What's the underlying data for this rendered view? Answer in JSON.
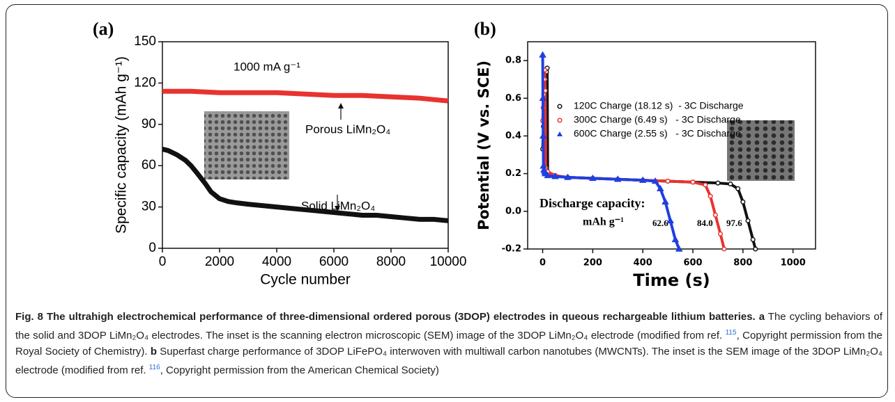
{
  "chart_data": [
    {
      "type": "line",
      "panel": "(a)",
      "xlabel": "Cycle number",
      "ylabel": "Specific capacity (mAh g⁻¹)",
      "annotations": [
        "1000 mA g⁻¹"
      ],
      "xlim": [
        0,
        10000
      ],
      "xticks": [
        0,
        2000,
        4000,
        6000,
        8000,
        10000
      ],
      "ylim": [
        0,
        150
      ],
      "yticks": [
        0,
        30,
        60,
        90,
        120,
        150
      ],
      "series": [
        {
          "name": "Porous LiMn₂O₄",
          "color": "#e8332f",
          "x": [
            0,
            1000,
            2000,
            3000,
            4000,
            5000,
            6000,
            7000,
            8000,
            9000,
            10000
          ],
          "values": [
            114,
            114,
            113,
            113,
            113,
            112,
            111,
            111,
            110,
            109,
            107
          ]
        },
        {
          "name": "Solid LiMn₂O₄",
          "color": "#111111",
          "x": [
            0,
            200,
            500,
            800,
            1000,
            1200,
            1500,
            1700,
            2000,
            2300,
            2600,
            3000,
            3500,
            4000,
            4500,
            5000,
            5500,
            6000,
            6500,
            7000,
            7500,
            8000,
            8500,
            9000,
            9500,
            10000
          ],
          "values": [
            72,
            71,
            68,
            64,
            60,
            55,
            47,
            41,
            36,
            34,
            33,
            32,
            31,
            30,
            29,
            28,
            27,
            26,
            25,
            24,
            24,
            23,
            22,
            21,
            21,
            20
          ]
        }
      ]
    },
    {
      "type": "scatter",
      "panel": "(b)",
      "xlabel": "Time (s)",
      "ylabel": "Potential (V vs. SCE)",
      "annotations": [
        "Discharge capacity:",
        "mAh g⁻¹",
        "62.6",
        "84.0",
        "97.6"
      ],
      "xlim": [
        -60,
        1090
      ],
      "xticks": [
        0,
        200,
        400,
        600,
        800,
        1000
      ],
      "ylim": [
        -0.2,
        0.9
      ],
      "yticks": [
        -0.2,
        {
          "value": 0,
          "label": "0.0"
        },
        0.2,
        0.4,
        0.6,
        0.8
      ],
      "series": [
        {
          "name": "120C Charge (18.12 s)  - 3C Discharge",
          "color": "#111111",
          "marker": "circle",
          "x": [
            0,
            3,
            6,
            9,
            12,
            15,
            18,
            20,
            25,
            40,
            100,
            200,
            300,
            400,
            500,
            600,
            700,
            750,
            780,
            800,
            820,
            840,
            850
          ],
          "values": [
            0.33,
            0.45,
            0.55,
            0.63,
            0.7,
            0.74,
            0.76,
            0.21,
            0.2,
            0.19,
            0.18,
            0.175,
            0.17,
            0.165,
            0.16,
            0.155,
            0.15,
            0.145,
            0.12,
            0.05,
            -0.05,
            -0.15,
            -0.2
          ]
        },
        {
          "name": "300C Charge (6.49 s)   - 3C Discharge",
          "color": "#e8332f",
          "marker": "circle",
          "x": [
            0,
            2,
            4,
            6,
            8,
            10,
            12,
            20,
            50,
            100,
            200,
            300,
            400,
            500,
            600,
            650,
            670,
            690,
            710,
            725
          ],
          "values": [
            0.48,
            0.55,
            0.62,
            0.7,
            0.75,
            0.64,
            0.23,
            0.21,
            0.19,
            0.18,
            0.175,
            0.17,
            0.165,
            0.16,
            0.155,
            0.14,
            0.08,
            -0.02,
            -0.12,
            -0.2
          ]
        },
        {
          "name": "600C Charge (2.55 s)   - 3C Discharge",
          "color": "#1f3fe0",
          "marker": "triangle",
          "x": [
            0,
            1,
            2,
            3,
            5,
            8,
            10,
            20,
            50,
            100,
            200,
            300,
            400,
            450,
            470,
            490,
            510,
            530,
            545
          ],
          "values": [
            0.83,
            0.6,
            0.4,
            0.24,
            0.22,
            0.21,
            0.2,
            0.19,
            0.185,
            0.18,
            0.175,
            0.17,
            0.165,
            0.16,
            0.12,
            0.05,
            -0.05,
            -0.15,
            -0.2
          ]
        }
      ]
    }
  ],
  "caption": {
    "title": "Fig. 8 The ultrahigh electrochemical performance of three-dimensional ordered porous (3DOP) electrodes in queous rechargeable lithium batteries.",
    "panel_a": "a",
    "text_a1": "The cycling behaviors of the solid and 3DOP LiMn₂O₄ electrodes. The inset is the scanning electron microscopic (SEM) image of the 3DOP LiMn₂O₄ electrode (modified from ref.",
    "ref_a": "115",
    "text_a2": ", Copyright permission from the Royal Society of Chemistry).",
    "panel_b": "b",
    "text_b1": "Superfast charge performance of 3DOP LiFePO₄ interwoven with multiwall carbon nanotubes (MWCNTs). The inset is the SEM image of the 3DOP LiMn₂O₄ electrode (modified from ref.",
    "ref_b": "116",
    "text_b2": ", Copyright permission from the American Chemical Society)"
  }
}
